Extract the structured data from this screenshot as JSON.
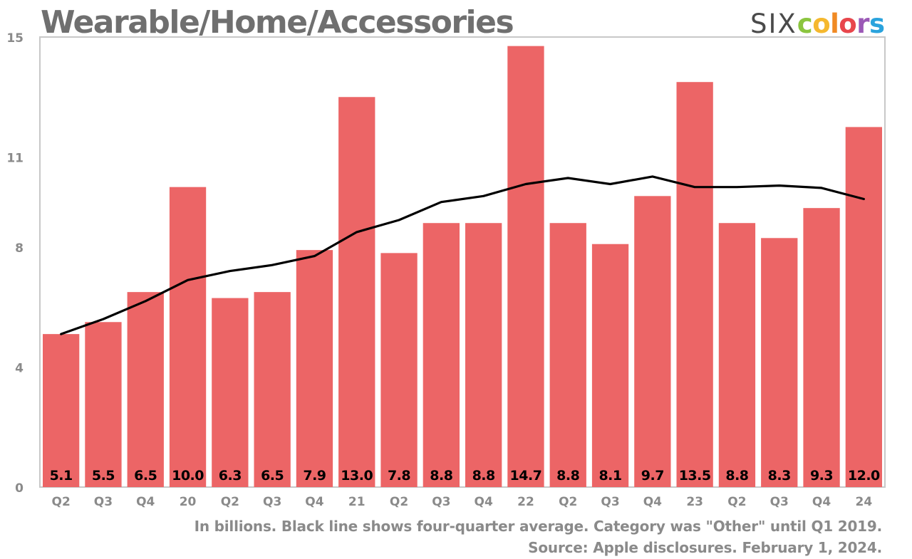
{
  "header": {
    "title": "Wearable/Home/Accessories"
  },
  "logo": {
    "six": "SIX",
    "colors_letters": [
      "c",
      "o",
      "l",
      "o",
      "r",
      "s"
    ],
    "colors_palette": [
      "#8bc53f",
      "#f5b82e",
      "#f08a24",
      "#e8464c",
      "#9b59b6",
      "#2aa3dd"
    ]
  },
  "footer": {
    "note": "In billions. Black line shows four-quarter average. Category was \"Other\" until Q1 2019.",
    "source": "Source: Apple disclosures. February 1, 2024."
  },
  "colors": {
    "bar": "#ec6566",
    "line": "#000000",
    "axis_text": "#8a8a8a",
    "frame": "#c8c8c8"
  },
  "chart_data": {
    "type": "bar",
    "title": "Wearable/Home/Accessories",
    "categories": [
      "Q2",
      "Q3",
      "Q4",
      "20",
      "Q2",
      "Q3",
      "Q4",
      "21",
      "Q2",
      "Q3",
      "Q4",
      "22",
      "Q2",
      "Q3",
      "Q4",
      "23",
      "Q2",
      "Q3",
      "Q4",
      "24"
    ],
    "series": [
      {
        "type": "bar",
        "values": [
          5.1,
          5.5,
          6.5,
          10.0,
          6.3,
          6.5,
          7.9,
          13.0,
          7.8,
          8.8,
          8.8,
          14.7,
          8.8,
          8.1,
          9.7,
          13.5,
          8.8,
          8.3,
          9.3,
          12.0
        ],
        "labels": [
          "5.1",
          "5.5",
          "6.5",
          "10.0",
          "6.3",
          "6.5",
          "7.9",
          "13.0",
          "7.8",
          "8.8",
          "8.8",
          "14.7",
          "8.8",
          "8.1",
          "9.7",
          "13.5",
          "8.8",
          "8.3",
          "9.3",
          "12.0"
        ]
      },
      {
        "type": "line",
        "values": [
          5.1,
          5.6,
          6.2,
          6.9,
          7.2,
          7.4,
          7.7,
          8.5,
          8.9,
          9.5,
          9.7,
          10.1,
          10.3,
          10.1,
          10.35,
          10.0,
          10.0,
          10.05,
          9.97,
          9.6
        ]
      }
    ],
    "ylim": [
      0,
      15
    ],
    "y_ticks": [
      0,
      4,
      8,
      11,
      15
    ],
    "y_tick_labels": [
      "0",
      "4",
      "8",
      "11",
      "15"
    ],
    "grid": false,
    "legend": "none"
  }
}
